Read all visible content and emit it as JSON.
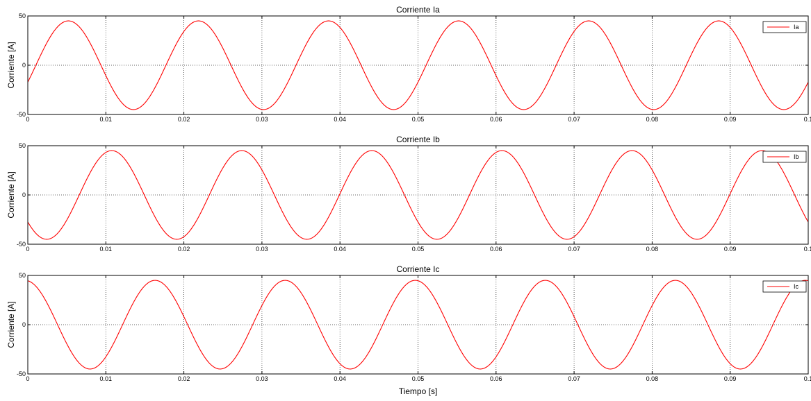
{
  "chart_data": [
    {
      "type": "line",
      "title": "Corriente Ia",
      "xlabel": "",
      "ylabel": "Corriente [A]",
      "xlim": [
        0,
        0.1
      ],
      "ylim": [
        -50,
        50
      ],
      "xticks": [
        0,
        0.01,
        0.02,
        0.03,
        0.04,
        0.05,
        0.06,
        0.07,
        0.08,
        0.09,
        0.1
      ],
      "xtick_labels": [
        "0",
        "0.01",
        "0.02",
        "0.03",
        "0.04",
        "0.05",
        "0.06",
        "0.07",
        "0.08",
        "0.09",
        "0.1"
      ],
      "yticks": [
        -50,
        0,
        50
      ],
      "ytick_labels": [
        "-50",
        "0",
        "50"
      ],
      "grid": true,
      "legend_position": "top-right",
      "series": [
        {
          "name": "Ia",
          "color": "#ff0000",
          "amplitude": 45,
          "frequency_hz": 60,
          "phase_deg": -22.4
        }
      ]
    },
    {
      "type": "line",
      "title": "Corriente Ib",
      "xlabel": "",
      "ylabel": "Corriente [A]",
      "xlim": [
        0,
        0.1
      ],
      "ylim": [
        -50,
        50
      ],
      "xticks": [
        0,
        0.01,
        0.02,
        0.03,
        0.04,
        0.05,
        0.06,
        0.07,
        0.08,
        0.09,
        0.1
      ],
      "xtick_labels": [
        "0",
        "0.01",
        "0.02",
        "0.03",
        "0.04",
        "0.05",
        "0.06",
        "0.07",
        "0.08",
        "0.09",
        "0.1"
      ],
      "yticks": [
        -50,
        0,
        50
      ],
      "ytick_labels": [
        "-50",
        "0",
        "50"
      ],
      "grid": true,
      "legend_position": "top-right",
      "series": [
        {
          "name": "Ib",
          "color": "#ff0000",
          "amplitude": 45,
          "frequency_hz": 60,
          "phase_deg": -142.4
        }
      ]
    },
    {
      "type": "line",
      "title": "Corriente Ic",
      "xlabel": "Tiempo [s]",
      "ylabel": "Corriente [A]",
      "xlim": [
        0,
        0.1
      ],
      "ylim": [
        -50,
        50
      ],
      "xticks": [
        0,
        0.01,
        0.02,
        0.03,
        0.04,
        0.05,
        0.06,
        0.07,
        0.08,
        0.09,
        0.1
      ],
      "xtick_labels": [
        "0",
        "0.01",
        "0.02",
        "0.03",
        "0.04",
        "0.05",
        "0.06",
        "0.07",
        "0.08",
        "0.09",
        "0.1"
      ],
      "yticks": [
        -50,
        0,
        50
      ],
      "ytick_labels": [
        "-50",
        "0",
        "50"
      ],
      "grid": true,
      "legend_position": "top-right",
      "series": [
        {
          "name": "Ic",
          "color": "#ff0000",
          "amplitude": 45,
          "frequency_hz": 60,
          "phase_deg": 97.6
        }
      ]
    }
  ]
}
